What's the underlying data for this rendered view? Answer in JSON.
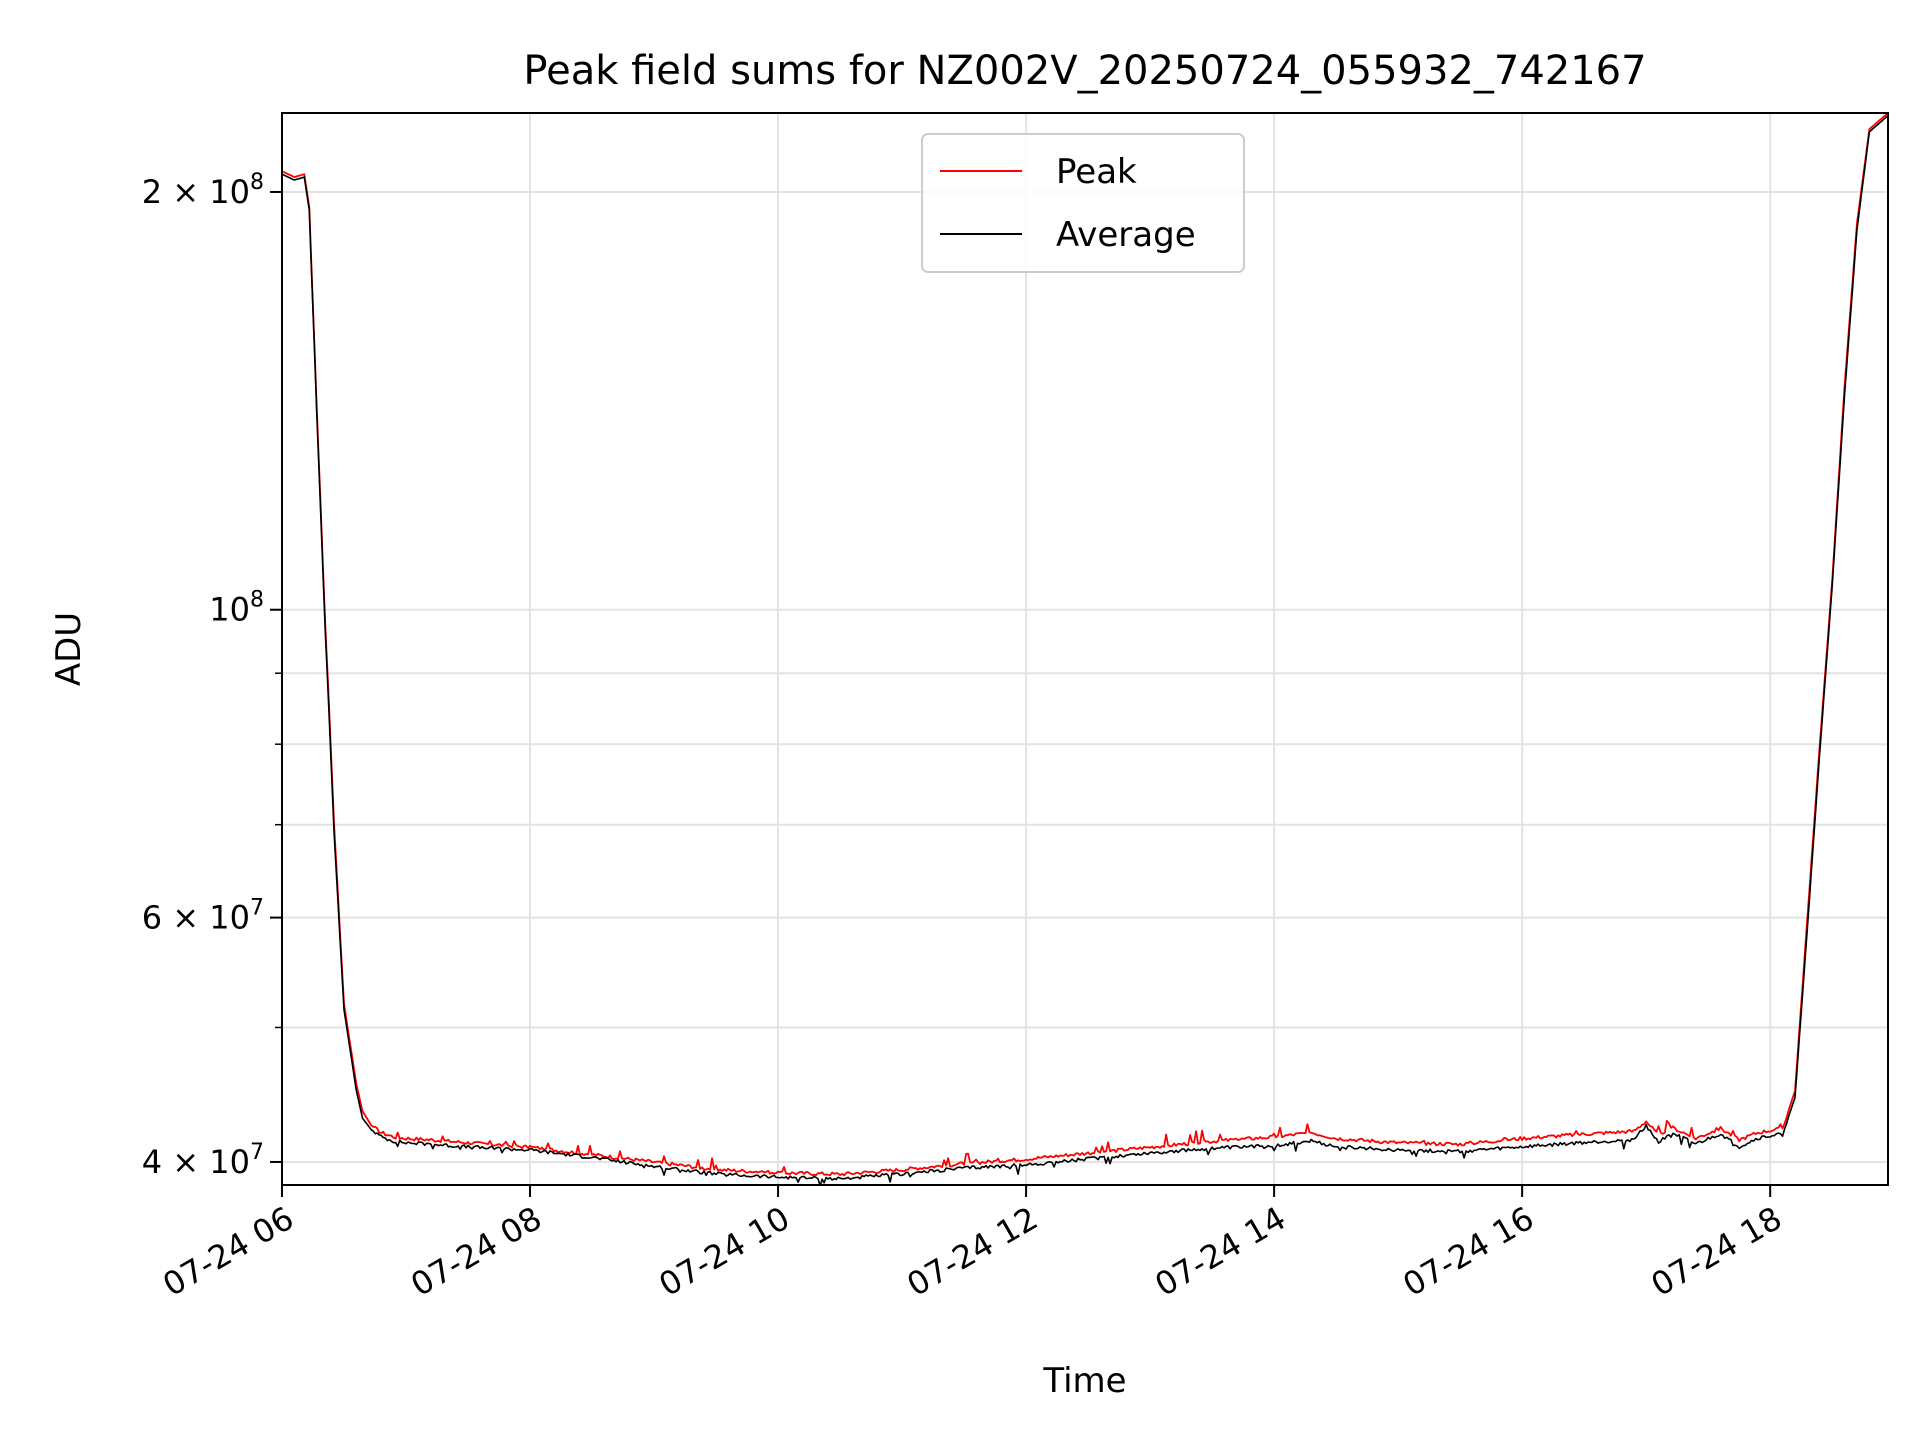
{
  "chart_data": {
    "type": "line",
    "title": "Peak field sums for NZ002V_20250724_055932_742167",
    "xlabel": "Time",
    "ylabel": "ADU",
    "yscale": "log",
    "x_unit": "hour of 2025-07-24",
    "xlim": [
      6.0,
      18.95
    ],
    "ylim": [
      38500000,
      228000000
    ],
    "grid": true,
    "legend_position": "upper-center",
    "x_ticks": [
      {
        "value": 6,
        "label": "07-24 06"
      },
      {
        "value": 8,
        "label": "07-24 08"
      },
      {
        "value": 10,
        "label": "07-24 10"
      },
      {
        "value": 12,
        "label": "07-24 12"
      },
      {
        "value": 14,
        "label": "07-24 14"
      },
      {
        "value": 16,
        "label": "07-24 16"
      },
      {
        "value": 18,
        "label": "07-24 18"
      }
    ],
    "y_major_ticks": [
      {
        "value": 40000000,
        "label": "4 × 10",
        "exp": "7"
      },
      {
        "value": 60000000,
        "label": "6 × 10",
        "exp": "7"
      },
      {
        "value": 100000000,
        "label": "10",
        "exp": "8"
      },
      {
        "value": 200000000,
        "label": "2 × 10",
        "exp": "8"
      }
    ],
    "y_minor_ticks": [
      50000000,
      70000000,
      80000000,
      90000000
    ],
    "series": [
      {
        "name": "Peak",
        "color": "#ff0000",
        "x": [
          6.0,
          6.1,
          6.18,
          6.22,
          6.28,
          6.35,
          6.38,
          6.42,
          6.5,
          6.6,
          6.65,
          6.72,
          6.8,
          6.9,
          7.0,
          7.2,
          7.5,
          8.0,
          8.5,
          9.0,
          9.5,
          10.0,
          10.5,
          11.0,
          11.5,
          12.0,
          12.5,
          13.0,
          13.5,
          14.0,
          14.3,
          14.5,
          15.0,
          15.5,
          16.0,
          16.5,
          16.9,
          17.0,
          17.1,
          17.2,
          17.4,
          17.6,
          17.75,
          17.9,
          18.1,
          18.2,
          18.3,
          18.4,
          18.5,
          18.6,
          18.7,
          18.8,
          18.95
        ],
        "y": [
          207000000,
          205000000,
          206000000,
          195000000,
          140000000,
          97000000,
          85000000,
          70000000,
          52000000,
          45500000,
          43500000,
          42500000,
          42000000,
          41700000,
          41600000,
          41500000,
          41300000,
          41000000,
          40500000,
          40000000,
          39500000,
          39300000,
          39200000,
          39500000,
          39900000,
          40200000,
          40600000,
          41000000,
          41400000,
          41700000,
          42000000,
          41600000,
          41300000,
          41200000,
          41600000,
          41900000,
          42100000,
          42800000,
          41800000,
          42400000,
          41600000,
          42300000,
          41500000,
          42000000,
          42300000,
          45000000,
          60000000,
          80000000,
          105000000,
          145000000,
          190000000,
          222000000,
          228000000
        ]
      },
      {
        "name": "Average",
        "color": "#000000",
        "x": [
          6.0,
          6.1,
          6.18,
          6.22,
          6.28,
          6.35,
          6.38,
          6.42,
          6.5,
          6.6,
          6.65,
          6.72,
          6.8,
          6.9,
          7.0,
          7.2,
          7.5,
          8.0,
          8.5,
          9.0,
          9.5,
          10.0,
          10.5,
          11.0,
          11.5,
          12.0,
          12.5,
          13.0,
          13.5,
          14.0,
          14.3,
          14.5,
          15.0,
          15.5,
          16.0,
          16.5,
          16.9,
          17.0,
          17.1,
          17.2,
          17.4,
          17.6,
          17.75,
          17.9,
          18.1,
          18.2,
          18.3,
          18.4,
          18.5,
          18.6,
          18.7,
          18.8,
          18.95
        ],
        "y": [
          206000000,
          204000000,
          205000000,
          194000000,
          139000000,
          96000000,
          84000000,
          69000000,
          51500000,
          45000000,
          43000000,
          42200000,
          41700000,
          41400000,
          41300000,
          41200000,
          41000000,
          40800000,
          40300000,
          39700000,
          39200000,
          39000000,
          38900000,
          39200000,
          39600000,
          39800000,
          40200000,
          40600000,
          40900000,
          41100000,
          41400000,
          41000000,
          40800000,
          40700000,
          41000000,
          41300000,
          41500000,
          42500000,
          41300000,
          42000000,
          41200000,
          41900000,
          41000000,
          41600000,
          41900000,
          44500000,
          59000000,
          79000000,
          104000000,
          143000000,
          188000000,
          221000000,
          227000000
        ]
      }
    ]
  }
}
